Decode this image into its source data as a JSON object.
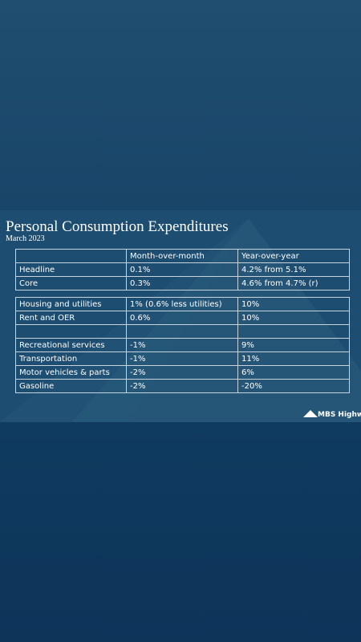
{
  "header": {
    "title": "Personal Consumption Expenditures",
    "subtitle": "March 2023"
  },
  "table1": {
    "columns": [
      null,
      "Month-over-month",
      "Year-over-year"
    ],
    "rows": [
      [
        "Headline",
        "0.1%",
        "4.2% from 5.1%"
      ],
      [
        "Core",
        "0.3%",
        "4.6% from 4.7% (r)"
      ]
    ]
  },
  "table2": {
    "groups": [
      [
        [
          "Housing and utilities",
          "1% (0.6% less utilities)",
          "10%"
        ],
        [
          "Rent and OER",
          "0.6%",
          "10%"
        ]
      ],
      [
        [
          "Recreational services",
          "-1%",
          "9%"
        ],
        [
          "Transportation",
          "-1%",
          "11%"
        ],
        [
          "Motor vehicles & parts",
          "-2%",
          "6%"
        ],
        [
          "Gasoline",
          "-2%",
          "-20%"
        ]
      ]
    ]
  },
  "logo": "MBS Highway."
}
